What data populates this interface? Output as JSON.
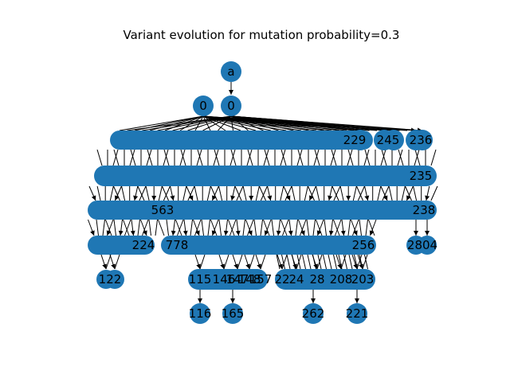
{
  "figure": {
    "title": "Variant evolution for mutation probability=0.3"
  },
  "graph": {
    "root_label": "a",
    "level1_labels": [
      "0",
      "0"
    ],
    "level2_right_labels": [
      "229",
      "245",
      "236"
    ],
    "level3_right_labels": [
      "235"
    ],
    "level4_labels": [
      "563",
      "238"
    ],
    "level5_labels": [
      "224",
      "778",
      "256",
      "2804"
    ],
    "level6_labels": [
      "122",
      "115",
      "146",
      "147",
      "148",
      "157",
      "22",
      "24",
      "28",
      "208",
      "203"
    ],
    "leaf_labels": [
      "116",
      "165",
      "262",
      "221"
    ]
  }
}
